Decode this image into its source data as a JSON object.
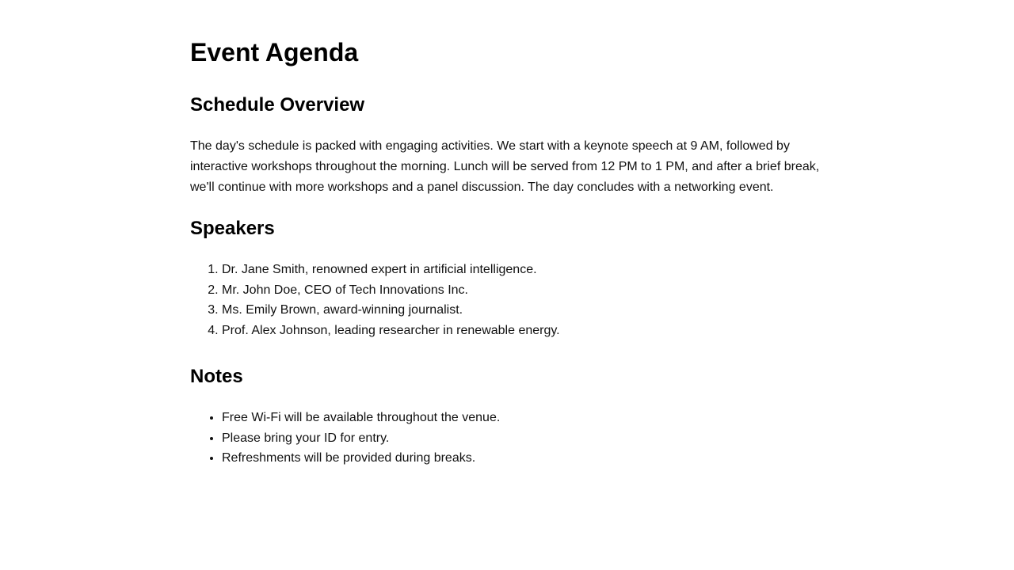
{
  "page": {
    "title": "Event Agenda"
  },
  "schedule": {
    "heading": "Schedule Overview",
    "text": "The day's schedule is packed with engaging activities. We start with a keynote speech at 9 AM, followed by interactive workshops throughout the morning. Lunch will be served from 12 PM to 1 PM, and after a brief break, we'll continue with more workshops and a panel discussion. The day concludes with a networking event."
  },
  "speakers": {
    "heading": "Speakers",
    "items": [
      "Dr. Jane Smith, renowned expert in artificial intelligence.",
      "Mr. John Doe, CEO of Tech Innovations Inc.",
      "Ms. Emily Brown, award-winning journalist.",
      "Prof. Alex Johnson, leading researcher in renewable energy."
    ]
  },
  "notes": {
    "heading": "Notes",
    "items": [
      "Free Wi-Fi will be available throughout the venue.",
      "Please bring your ID for entry.",
      "Refreshments will be provided during breaks."
    ]
  }
}
